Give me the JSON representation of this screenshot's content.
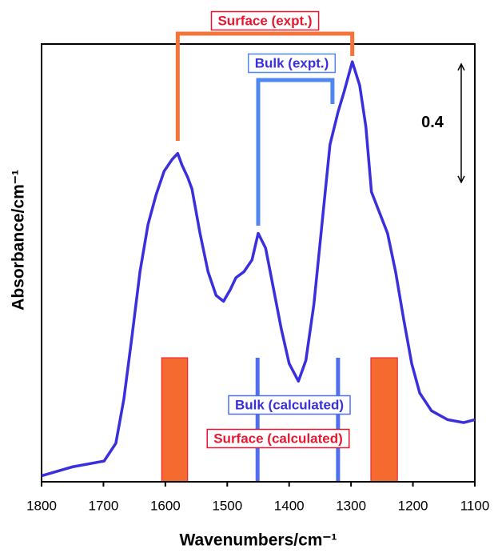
{
  "chart_data": {
    "type": "line",
    "x_label": "Wavenumbers/cm⁻¹",
    "y_label": "Absorbance/cm⁻¹",
    "xlim": [
      1800,
      1100
    ],
    "ylim": [
      0,
      1.48
    ],
    "xticks": [
      1800,
      1700,
      1600,
      1500,
      1400,
      1300,
      1200,
      1100
    ],
    "x": [
      1800,
      1751,
      1699,
      1680,
      1667,
      1654,
      1641,
      1628,
      1615,
      1602,
      1589,
      1580,
      1573,
      1564,
      1557,
      1544,
      1531,
      1518,
      1506,
      1495,
      1486,
      1473,
      1460,
      1450,
      1438,
      1425,
      1413,
      1400,
      1385,
      1373,
      1360,
      1347,
      1334,
      1321,
      1311,
      1298,
      1286,
      1276,
      1267,
      1254,
      1241,
      1228,
      1215,
      1202,
      1189,
      1170,
      1144,
      1118,
      1100
    ],
    "series": [
      {
        "color": "#3a2fdc",
        "values": [
          0.02,
          0.05,
          0.07,
          0.13,
          0.28,
          0.49,
          0.71,
          0.87,
          0.97,
          1.05,
          1.09,
          1.11,
          1.07,
          1.03,
          0.99,
          0.84,
          0.71,
          0.63,
          0.61,
          0.65,
          0.69,
          0.71,
          0.75,
          0.84,
          0.79,
          0.65,
          0.52,
          0.4,
          0.34,
          0.41,
          0.6,
          0.87,
          1.14,
          1.25,
          1.32,
          1.42,
          1.34,
          1.2,
          0.98,
          0.91,
          0.84,
          0.71,
          0.55,
          0.4,
          0.3,
          0.24,
          0.21,
          0.2,
          0.21
        ]
      }
    ],
    "scale_bar": 0.4,
    "surface_expt": {
      "text": "Surface (expt.)",
      "x": [
        1580,
        1298
      ],
      "color": "#f5743a",
      "text_color": "#e8162e"
    },
    "bulk_expt": {
      "text": "Bulk (expt.)",
      "x": [
        1450,
        1330
      ],
      "color": "#4f86f0",
      "text_color": "#3a2fdc"
    },
    "bulk_calc": {
      "text": "Bulk (calculated)",
      "x": [
        1451,
        1321
      ],
      "color": "#4f6ff0",
      "text_color": "#3a2fdc"
    },
    "surface_calc": {
      "text": "Surface (calculated)",
      "bands": [
        [
          1606,
          1564
        ],
        [
          1268,
          1225
        ]
      ],
      "color": "#f56b2f",
      "text_color": "#e8162e"
    }
  }
}
